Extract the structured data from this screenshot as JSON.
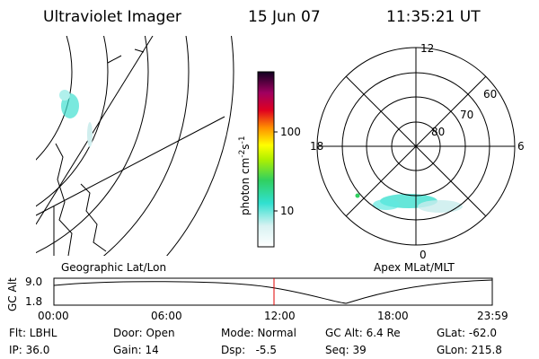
{
  "header": {
    "title": "Ultraviolet Imager",
    "date": "15 Jun 07",
    "time": "11:35:21 UT"
  },
  "colorbar": {
    "label": {
      "base": "photon cm",
      "exp1": "-2",
      "unit2": "s",
      "exp2": "-1"
    },
    "ticks": [
      "100",
      "10"
    ]
  },
  "polar": {
    "hours": {
      "top": "12",
      "right": "6",
      "bottom": "0",
      "left": "18"
    },
    "latitudes": [
      "60",
      "70",
      "80"
    ]
  },
  "panels": {
    "left": "Geographic Lat/Lon",
    "right": "Apex MLat/MLT"
  },
  "timeline": {
    "ylabel": "GC Alt",
    "yticks": [
      "9.0",
      "1.8"
    ],
    "xticks": [
      "00:00",
      "06:00",
      "12:00",
      "18:00",
      "23:59"
    ]
  },
  "footer": {
    "rows": [
      [
        "Flt: LBHL",
        "Door: Open",
        "Mode: Normal",
        "GC Alt: 6.4 Re",
        "GLat: -62.0"
      ],
      [
        "IP: 36.0",
        "Gain: 14",
        "Dsp:   -5.5",
        "Seq: 39",
        "GLon: 215.8"
      ]
    ]
  }
}
